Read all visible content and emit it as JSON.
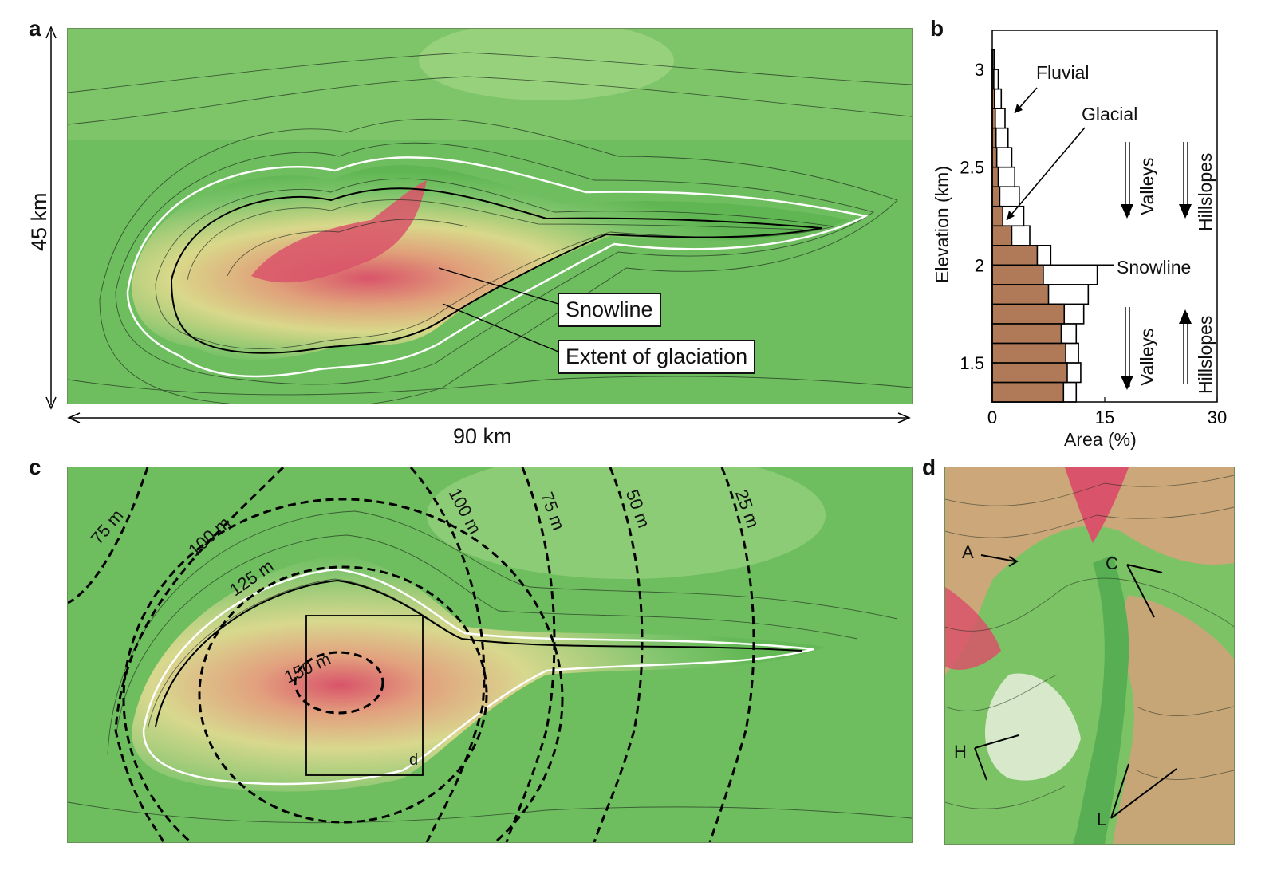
{
  "panel_a": {
    "letter": "a",
    "scale_vertical": "45 km",
    "scale_horizontal": "90 km",
    "callouts": [
      "Snowline",
      "Extent of glaciation"
    ]
  },
  "panel_b": {
    "letter": "b",
    "annotations": {
      "fluvial": "Fluvial",
      "glacial": "Glacial",
      "snowline": "Snowline",
      "valleys_upper": "Valleys",
      "hillslopes_upper": "Hillslopes",
      "valleys_lower": "Valleys",
      "hillslopes_lower": "Hillslopes"
    },
    "chart_data": {
      "type": "bar",
      "orientation": "horizontal",
      "xlabel": "Area (%)",
      "ylabel": "Elevation (km)",
      "xlim": [
        0,
        30
      ],
      "ylim": [
        1.3,
        3.2
      ],
      "x_ticks": [
        "0",
        "15",
        "30"
      ],
      "y_ticks": [
        "1.5",
        "2",
        "2.5",
        "3"
      ],
      "bin_bottoms_km": [
        1.3,
        1.4,
        1.5,
        1.6,
        1.7,
        1.8,
        1.9,
        2.0,
        2.1,
        2.2,
        2.3,
        2.4,
        2.5,
        2.6,
        2.7,
        2.8,
        2.9,
        3.0
      ],
      "series": [
        {
          "name": "Fluvial",
          "color": "#ffffff",
          "values": [
            11.2,
            11.8,
            11.5,
            11.2,
            12.2,
            12.8,
            14.0,
            7.8,
            5.0,
            4.2,
            3.6,
            3.0,
            2.6,
            2.1,
            1.7,
            1.2,
            0.8,
            0.3
          ]
        },
        {
          "name": "Glacial",
          "color": "#b07a58",
          "values": [
            9.5,
            10.0,
            9.8,
            9.2,
            9.6,
            7.5,
            6.8,
            6.0,
            2.6,
            1.4,
            1.0,
            0.8,
            0.6,
            0.5,
            0.4,
            0.3,
            0.2,
            0.1
          ]
        }
      ],
      "snowline_km": 2.0
    }
  },
  "panel_c": {
    "letter": "c",
    "contour_labels": [
      "75 m",
      "100 m",
      "125 m",
      "150 m",
      "100 m",
      "75 m",
      "50 m",
      "25 m"
    ],
    "inset_label": "d"
  },
  "panel_d": {
    "letter": "d",
    "markers": [
      "A",
      "C",
      "H",
      "L"
    ]
  }
}
